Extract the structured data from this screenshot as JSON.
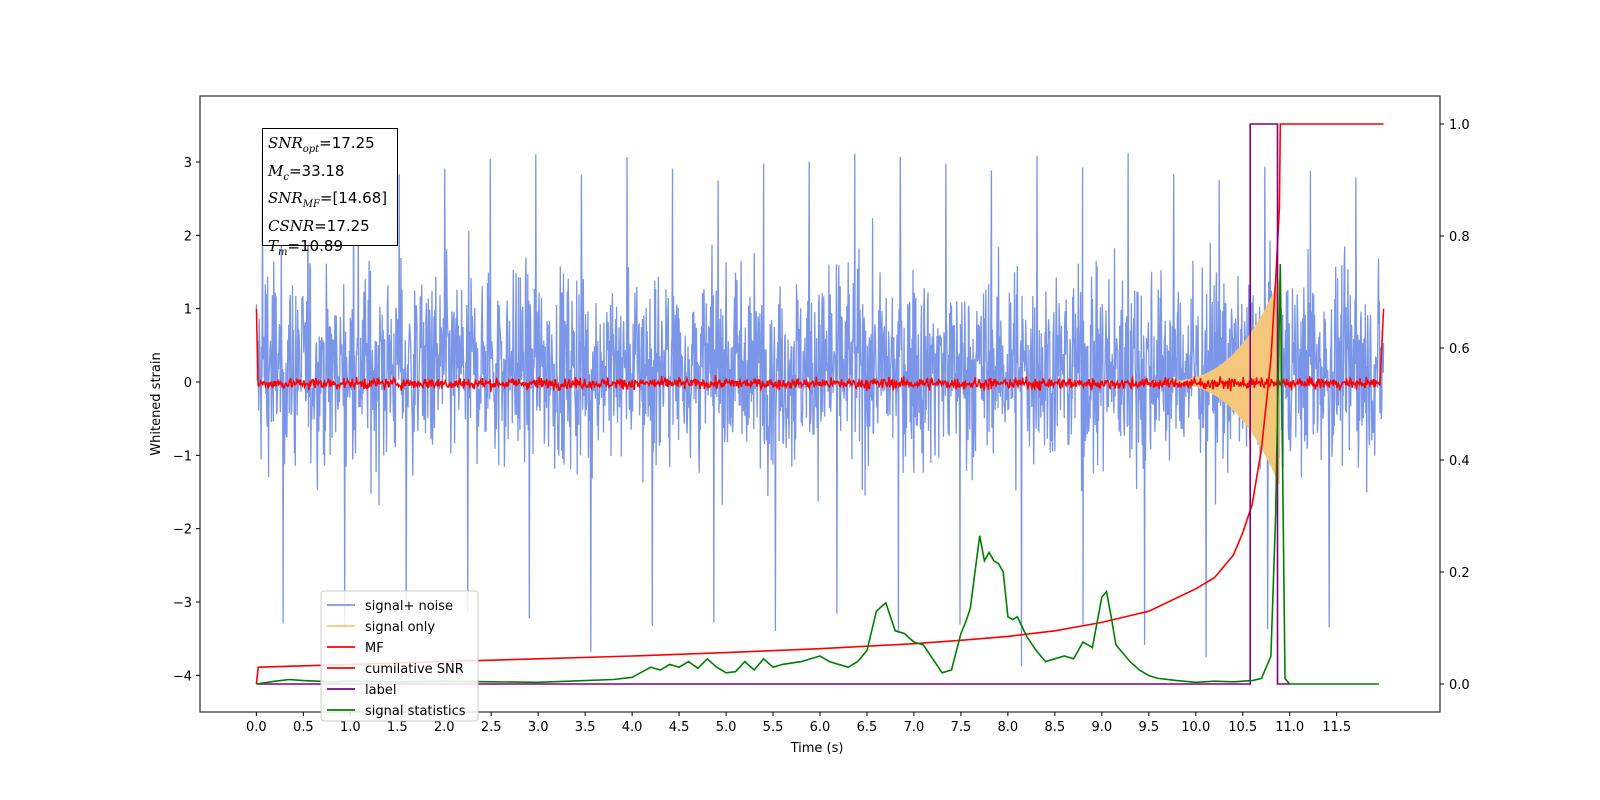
{
  "chart_data": {
    "type": "line",
    "xlabel": "Time (s)",
    "ylabel": "Whitened strain",
    "xlim": [
      -0.6,
      12.6
    ],
    "ylim": [
      -4.5,
      3.9
    ],
    "ylim_right": [
      -0.05,
      1.05
    ],
    "x_ticks": [
      0.0,
      0.5,
      1.0,
      1.5,
      2.0,
      2.5,
      3.0,
      3.5,
      4.0,
      4.5,
      5.0,
      5.5,
      6.0,
      6.5,
      7.0,
      7.5,
      8.0,
      8.5,
      9.0,
      9.5,
      10.0,
      10.5,
      11.0,
      11.5
    ],
    "x_tick_labels": [
      "0.0",
      "0.5",
      "1.0",
      "1.5",
      "2.0",
      "2.5",
      "3.0",
      "3.5",
      "4.0",
      "4.5",
      "5.0",
      "5.5",
      "6.0",
      "6.5",
      "7.0",
      "7.5",
      "8.0",
      "8.5",
      "9.0",
      "9.5",
      "10.0",
      "10.5",
      "11.0",
      "11.5"
    ],
    "y_ticks": [
      -4,
      -3,
      -2,
      -1,
      0,
      1,
      2,
      3
    ],
    "y_tick_labels": [
      "−4",
      "−3",
      "−2",
      "−1",
      "0",
      "1",
      "2",
      "3"
    ],
    "y_right_ticks": [
      0.0,
      0.2,
      0.4,
      0.6,
      0.8,
      1.0
    ],
    "y_right_tick_labels": [
      "0.0",
      "0.2",
      "0.4",
      "0.6",
      "0.8",
      "1.0"
    ],
    "grid": false,
    "legend_position": "lower-left",
    "series": [
      {
        "name": "signal+ noise",
        "axis": "left",
        "color": "#7b96e8",
        "style": "noise",
        "x_range": [
          0.0,
          12.0
        ],
        "mean": 0.2,
        "typical_amplitude": 1.9,
        "extremes": [
          3.2,
          -3.9
        ]
      },
      {
        "name": "signal only",
        "axis": "left",
        "color": "#f5c77a",
        "style": "chirp",
        "x_range": [
          9.5,
          10.89
        ],
        "peak_amplitude": 1.4,
        "merger_time": 10.89
      },
      {
        "name": "MF",
        "axis": "left",
        "color": "#ff0000",
        "style": "noise",
        "x_range": [
          0.0,
          12.0
        ],
        "mean": -0.02,
        "typical_amplitude": 0.15,
        "x": [
          0.0,
          0.02,
          11.96,
          12.0
        ],
        "y": [
          1.0,
          -0.05,
          -0.05,
          1.0
        ]
      },
      {
        "name": "cumilative SNR",
        "axis": "right",
        "color": "#ff0000",
        "style": "line",
        "x": [
          0.0,
          0.02,
          1,
          2,
          3,
          4,
          5,
          6,
          7,
          7.5,
          8,
          8.5,
          9,
          9.5,
          10,
          10.2,
          10.4,
          10.5,
          10.6,
          10.7,
          10.8,
          10.85,
          10.89,
          10.9,
          11.0,
          12.0
        ],
        "y": [
          0.0,
          0.03,
          0.035,
          0.04,
          0.045,
          0.05,
          0.056,
          0.063,
          0.072,
          0.078,
          0.085,
          0.095,
          0.11,
          0.13,
          0.17,
          0.19,
          0.23,
          0.27,
          0.32,
          0.42,
          0.58,
          0.72,
          0.85,
          1.0,
          1.0,
          1.0
        ]
      },
      {
        "name": "label",
        "axis": "right",
        "color": "#800080",
        "style": "line",
        "x": [
          0.0,
          10.58,
          10.58,
          10.87,
          10.87,
          11.0
        ],
        "y": [
          0.0,
          0.0,
          1.0,
          1.0,
          0.0,
          0.0
        ]
      },
      {
        "name": "signal statistics",
        "axis": "right",
        "color": "#008000",
        "style": "line",
        "x": [
          0.0,
          0.2,
          0.35,
          0.5,
          0.8,
          1.0,
          1.5,
          2.0,
          2.5,
          3.0,
          3.5,
          3.8,
          4.0,
          4.2,
          4.3,
          4.4,
          4.5,
          4.6,
          4.7,
          4.8,
          4.9,
          5.0,
          5.1,
          5.2,
          5.3,
          5.4,
          5.5,
          5.6,
          5.8,
          6.0,
          6.1,
          6.3,
          6.4,
          6.5,
          6.6,
          6.7,
          6.8,
          6.9,
          7.0,
          7.1,
          7.2,
          7.3,
          7.4,
          7.5,
          7.55,
          7.6,
          7.65,
          7.7,
          7.75,
          7.8,
          7.85,
          7.9,
          7.95,
          8.0,
          8.05,
          8.1,
          8.2,
          8.3,
          8.4,
          8.5,
          8.6,
          8.7,
          8.8,
          8.9,
          9.0,
          9.05,
          9.1,
          9.15,
          9.2,
          9.3,
          9.4,
          9.5,
          9.6,
          9.8,
          10.0,
          10.2,
          10.4,
          10.6,
          10.7,
          10.8,
          10.85,
          10.9,
          10.95,
          11.0,
          11.5,
          11.95
        ],
        "y": [
          0.0,
          0.005,
          0.008,
          0.006,
          0.004,
          0.005,
          0.004,
          0.005,
          0.004,
          0.003,
          0.006,
          0.008,
          0.012,
          0.03,
          0.025,
          0.035,
          0.03,
          0.04,
          0.028,
          0.045,
          0.03,
          0.02,
          0.022,
          0.04,
          0.025,
          0.045,
          0.03,
          0.035,
          0.04,
          0.05,
          0.04,
          0.03,
          0.04,
          0.06,
          0.13,
          0.145,
          0.095,
          0.09,
          0.075,
          0.07,
          0.045,
          0.02,
          0.025,
          0.09,
          0.11,
          0.135,
          0.2,
          0.265,
          0.22,
          0.235,
          0.22,
          0.215,
          0.2,
          0.12,
          0.115,
          0.12,
          0.085,
          0.06,
          0.04,
          0.045,
          0.05,
          0.045,
          0.075,
          0.065,
          0.155,
          0.165,
          0.12,
          0.07,
          0.06,
          0.04,
          0.025,
          0.015,
          0.01,
          0.006,
          0.003,
          0.005,
          0.004,
          0.006,
          0.01,
          0.05,
          0.3,
          0.75,
          0.01,
          0.0,
          0.0,
          0.0
        ]
      }
    ],
    "annotations": {
      "snr_opt": "=17.25",
      "mc": "=33.18",
      "snr_mf": "=[14.68]",
      "csnr": "=17.25",
      "tm": "=10.89"
    }
  },
  "annotation_box": {
    "snr_opt_base": "SNR",
    "snr_opt_sub": "opt",
    "snr_opt_val": "=17.25",
    "mc_base": "M",
    "mc_sub": "c",
    "mc_val": "=33.18",
    "snr_mf_base": "SNR",
    "snr_mf_sub": "MF",
    "snr_mf_val": "=[14.68]",
    "csnr_base": "CSNR",
    "csnr_val": "=17.25",
    "tm_base": "T",
    "tm_sub": "m",
    "tm_val": "=10.89"
  }
}
